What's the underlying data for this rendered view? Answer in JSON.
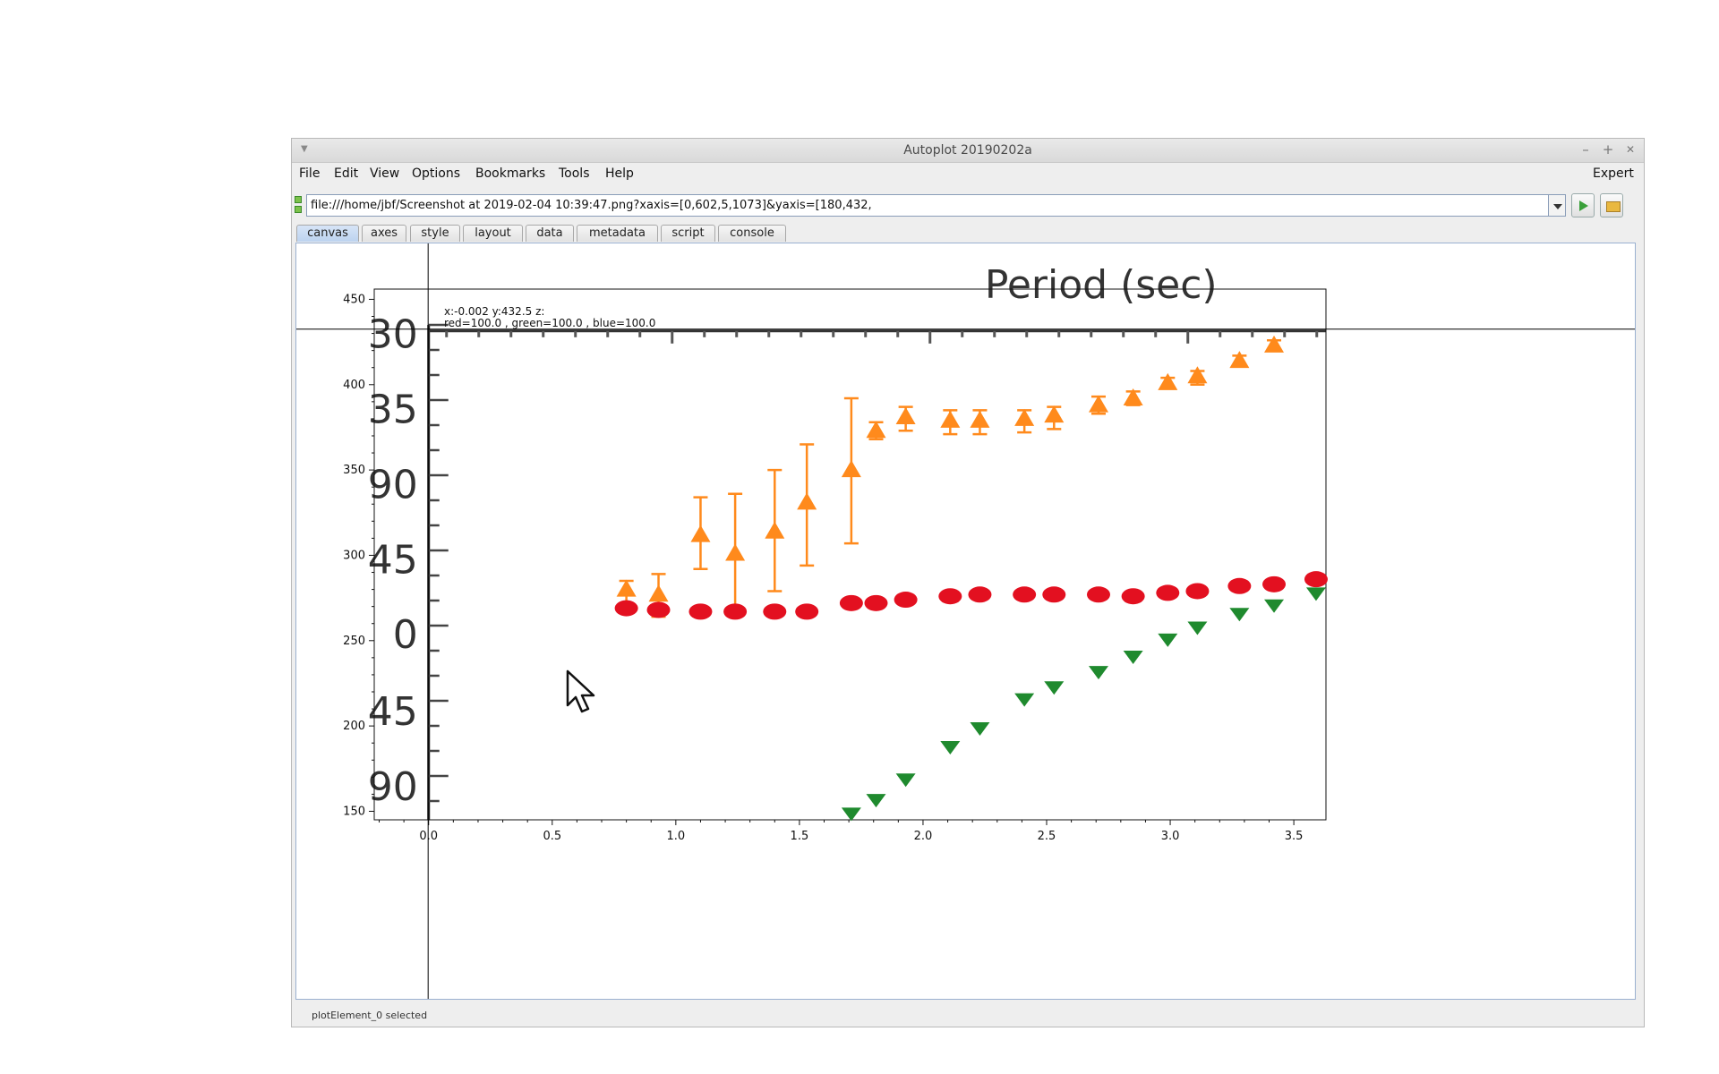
{
  "window": {
    "title": "Autoplot 20190202a",
    "controls": {
      "minimize": "–",
      "maximize": "+",
      "close": "✕"
    }
  },
  "menubar": {
    "items": [
      "File",
      "Edit",
      "View",
      "Options",
      "Bookmarks",
      "Tools",
      "Help"
    ],
    "expert_label": "Expert"
  },
  "url_bar": {
    "value": "file:///home/jbf/Screenshot at 2019-02-04 10:39:47.png?xaxis=[0,602,5,1073]&yaxis=[180,432,"
  },
  "tabs": {
    "items": [
      "canvas",
      "axes",
      "style",
      "layout",
      "data",
      "metadata",
      "script",
      "console"
    ],
    "active": "canvas"
  },
  "readout": {
    "line1": "x:-0.002  y:432.5  z:",
    "line2": "red=100.0 , green=100.0 , blue=100.0"
  },
  "status": {
    "text": "plotElement_0 selected"
  },
  "chart_data": {
    "type": "scatter",
    "title": "",
    "xlabel": "",
    "ylabel": "",
    "xlim": [
      -0.22,
      3.63
    ],
    "ylim": [
      145,
      456
    ],
    "x_ticks": [
      "0.0",
      "0.5",
      "1.0",
      "1.5",
      "2.0",
      "2.5",
      "3.0",
      "3.5"
    ],
    "y_ticks": [
      "150",
      "200",
      "250",
      "300",
      "350",
      "400",
      "450"
    ],
    "cursor": {
      "x": -0.002,
      "y": 432.5
    },
    "background_image": {
      "text": "Period (sec)",
      "old_axis_labels": [
        "30",
        "35",
        "90",
        "45",
        "0",
        "45",
        "90"
      ],
      "old_axis_label_y": [
        430,
        386,
        342,
        298,
        254,
        209,
        165
      ]
    },
    "series": [
      {
        "color": "#ff8a1c",
        "marker": "triangle-up",
        "x": [
          0.8,
          0.93,
          1.1,
          1.24,
          1.4,
          1.53,
          1.71,
          1.81,
          1.93,
          2.11,
          2.23,
          2.41,
          2.53,
          2.71,
          2.85,
          2.99,
          3.11,
          3.28,
          3.42
        ],
        "y": [
          280,
          277,
          312,
          301,
          314,
          331,
          350,
          373,
          381,
          379,
          379,
          380,
          382,
          388,
          392,
          401,
          405,
          414,
          423
        ],
        "err_low": [
          271,
          264,
          292,
          264,
          279,
          294,
          307,
          368,
          373,
          371,
          371,
          372,
          374,
          383,
          388,
          398,
          400,
          411,
          420
        ],
        "err_high": [
          285,
          289,
          334,
          336,
          350,
          365,
          392,
          378,
          387,
          385,
          385,
          385,
          387,
          393,
          396,
          404,
          408,
          417,
          426
        ]
      },
      {
        "color": "#e31020",
        "marker": "ellipse",
        "x": [
          0.8,
          0.93,
          1.1,
          1.24,
          1.4,
          1.53,
          1.71,
          1.81,
          1.93,
          2.11,
          2.23,
          2.41,
          2.53,
          2.71,
          2.85,
          2.99,
          3.11,
          3.28,
          3.42,
          3.59
        ],
        "y": [
          269,
          268,
          267,
          267,
          267,
          267,
          272,
          272,
          274,
          276,
          277,
          277,
          277,
          277,
          276,
          278,
          279,
          282,
          283,
          286
        ],
        "err_low": [],
        "err_high": []
      },
      {
        "color": "#1f8a2e",
        "marker": "triangle-down",
        "x": [
          1.71,
          1.81,
          1.93,
          2.11,
          2.23,
          2.41,
          2.53,
          2.71,
          2.85,
          2.99,
          3.11,
          3.28,
          3.42,
          3.59
        ],
        "y": [
          149,
          157,
          169,
          188,
          199,
          216,
          223,
          232,
          241,
          251,
          258,
          266,
          271,
          278
        ],
        "err_low": [],
        "err_high": []
      }
    ]
  }
}
